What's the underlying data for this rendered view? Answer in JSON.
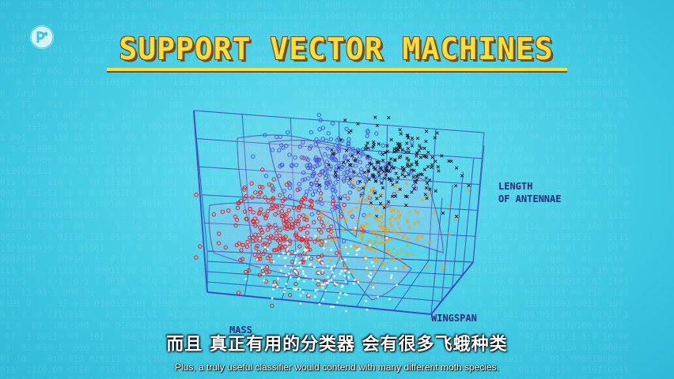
{
  "title": "SUPPORT VECTOR MACHINES",
  "logo": {
    "icon": "pbs-logo-icon"
  },
  "diagram": {
    "axis_labels": {
      "z": "LENGTH\nOF ANTENNAE",
      "y": "WINGSPAN",
      "x": "MASS"
    },
    "clusters": [
      {
        "color": "#e8202a",
        "marker": "circle"
      },
      {
        "color": "#4a5ae0",
        "marker": "circle"
      },
      {
        "color": "#1a1a2a",
        "marker": "cross"
      },
      {
        "color": "#f0a020",
        "marker": "cross"
      },
      {
        "color": "#ffffff",
        "marker": "dot"
      }
    ],
    "colors": {
      "grid": "#3a44b8",
      "title_fill": "#f7df3c",
      "title_shadow": "#7a4a1a"
    }
  },
  "subtitles": {
    "chinese": "而且 真正有用的分类器 会有很多飞蛾种类",
    "english": "Plus, a truly useful classifier would contend with many different moth species."
  }
}
